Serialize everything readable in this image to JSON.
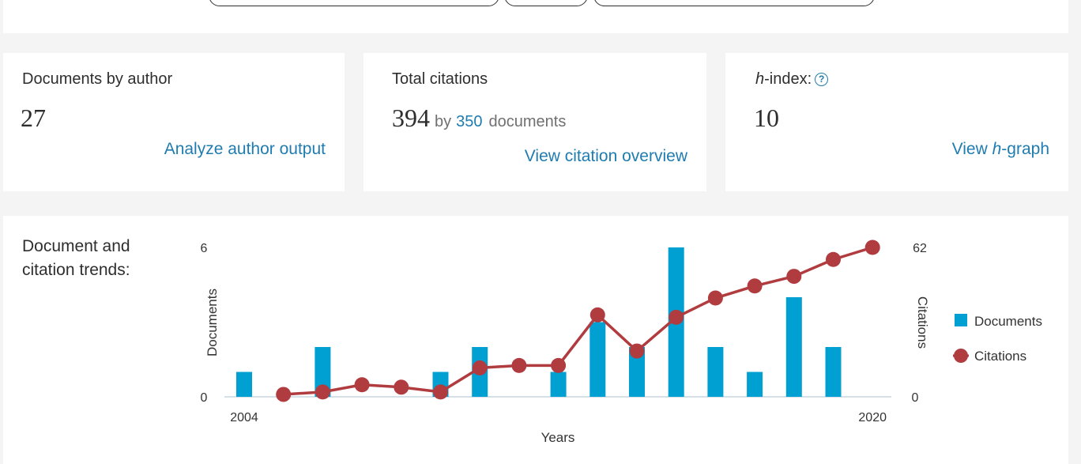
{
  "cards": {
    "documents": {
      "label": "Documents by author",
      "value": "27",
      "link": "Analyze author output"
    },
    "citations": {
      "label": "Total citations",
      "value": "394",
      "by": "by",
      "citing_docs": "350",
      "docs_word": "documents",
      "link": "View citation overview"
    },
    "hindex": {
      "label_italic": "h",
      "label_rest": "-index:",
      "help": "?",
      "value": "10",
      "link_prefix": "View ",
      "link_italic": "h",
      "link_suffix": "-graph"
    }
  },
  "trends": {
    "title": "Document and citation trends:",
    "chart_data": {
      "type": "bar+line",
      "x_first_label": "2004",
      "x_last_label": "2020",
      "xlabel": "Years",
      "ylabel_left": "Documents",
      "ylabel_right": "Citations",
      "ylim_left": [
        0,
        6
      ],
      "ylim_right": [
        0,
        62
      ],
      "left_ticks": [
        "0",
        "6"
      ],
      "right_ticks": [
        "0",
        "62"
      ],
      "x": [
        2004,
        2005,
        2006,
        2007,
        2008,
        2009,
        2010,
        2011,
        2012,
        2013,
        2014,
        2015,
        2016,
        2017,
        2018,
        2019,
        2020
      ],
      "series": [
        {
          "name": "Documents",
          "type": "bar",
          "color": "#00a0d2",
          "values": [
            1,
            0,
            2,
            0,
            0,
            1,
            2,
            0,
            1,
            3,
            2,
            6,
            2,
            1,
            4,
            2,
            0
          ]
        },
        {
          "name": "Citations",
          "type": "line",
          "color": "#b03c40",
          "values": [
            null,
            1,
            2,
            5,
            4,
            2,
            12,
            13,
            13,
            34,
            19,
            33,
            41,
            46,
            50,
            57,
            62
          ]
        }
      ],
      "legend_position": "right"
    }
  }
}
